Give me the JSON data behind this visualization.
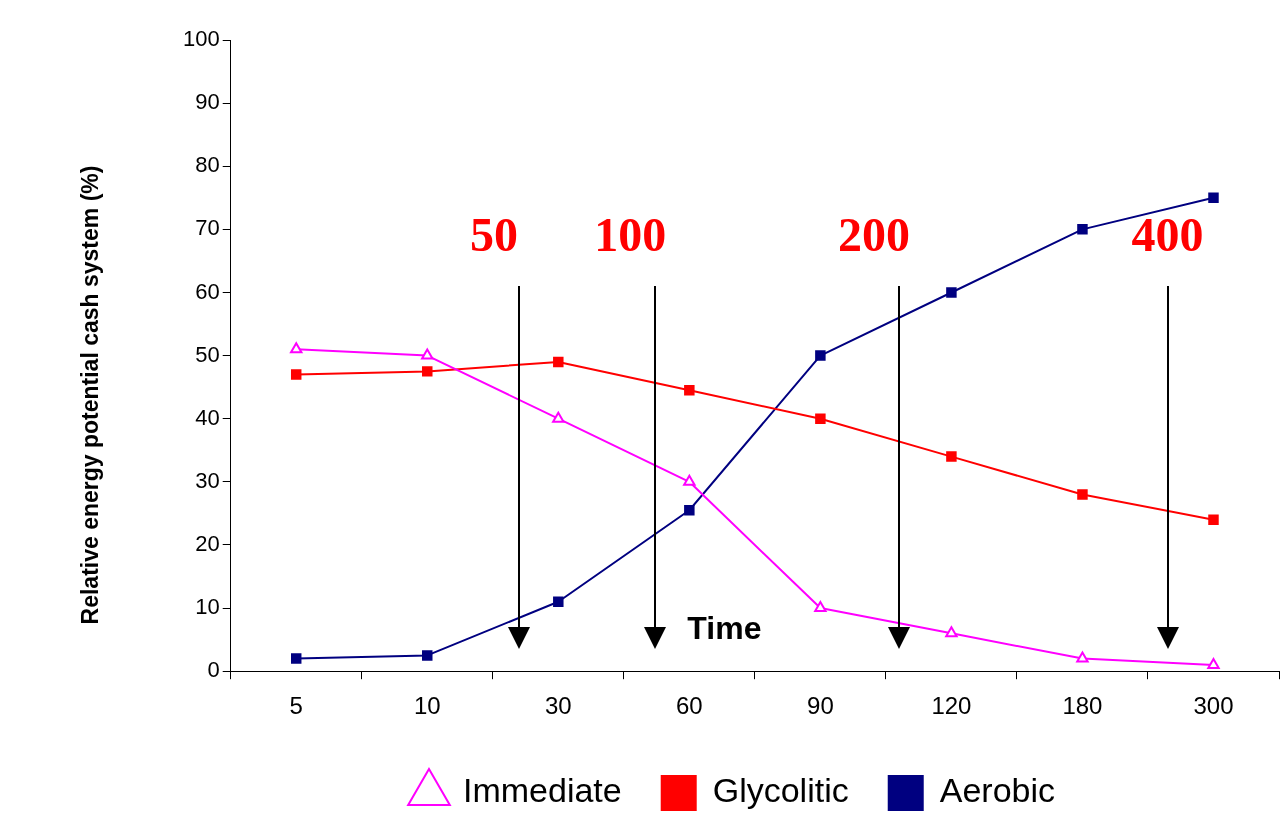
{
  "chart_data": {
    "type": "line",
    "xlabel": "Time",
    "ylabel": "Relative energy potential cash system (%)",
    "categories": [
      "5",
      "10",
      "30",
      "60",
      "90",
      "120",
      "180",
      "300"
    ],
    "series": [
      {
        "name": "Immediate",
        "color": "#ff00ff",
        "marker": "triangle",
        "values": [
          51,
          50,
          40,
          30,
          10,
          6,
          2,
          1
        ]
      },
      {
        "name": "Glycolitic",
        "color": "#ff0000",
        "marker": "square",
        "values": [
          47,
          47.5,
          49,
          44.5,
          40,
          34,
          28,
          24
        ]
      },
      {
        "name": "Aerobic",
        "color": "#000080",
        "marker": "square",
        "values": [
          2,
          2.5,
          11,
          25.5,
          50,
          60,
          70,
          75
        ]
      }
    ],
    "ylim": [
      0,
      100
    ],
    "yticks": [
      0,
      10,
      20,
      30,
      40,
      50,
      60,
      70,
      80,
      90,
      100
    ],
    "grid": false,
    "legend": "bottom",
    "line_style": "solid",
    "annotations": [
      "50",
      "100",
      "200",
      "400"
    ]
  }
}
